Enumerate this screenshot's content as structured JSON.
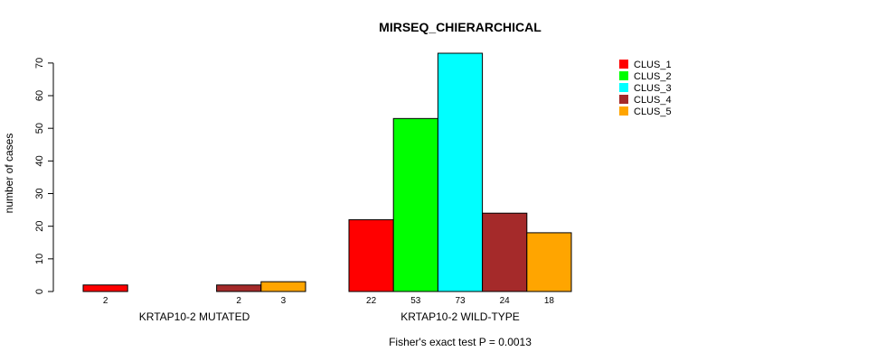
{
  "chart_data": {
    "type": "bar",
    "title": "MIRSEQ_CHIERARCHICAL",
    "ylabel": "number of cases",
    "xlabel": "",
    "ylim": [
      0,
      73
    ],
    "yticks": [
      0,
      10,
      20,
      30,
      40,
      50,
      60,
      70
    ],
    "groups": [
      "KRTAP10-2 MUTATED",
      "KRTAP10-2 WILD-TYPE"
    ],
    "series": [
      {
        "name": "CLUS_1",
        "color": "#ff0000",
        "values": [
          2,
          22
        ],
        "labels": [
          "2",
          "22"
        ]
      },
      {
        "name": "CLUS_2",
        "color": "#00ff00",
        "values": [
          0,
          53
        ],
        "labels": [
          "",
          "53"
        ]
      },
      {
        "name": "CLUS_3",
        "color": "#00ffff",
        "values": [
          0,
          73
        ],
        "labels": [
          "",
          "73"
        ]
      },
      {
        "name": "CLUS_4",
        "color": "#a52a2a",
        "values": [
          2,
          24
        ],
        "labels": [
          "2",
          "24"
        ]
      },
      {
        "name": "CLUS_5",
        "color": "#ffa500",
        "values": [
          3,
          18
        ],
        "labels": [
          "3",
          "18"
        ]
      }
    ],
    "legend_position": "top-right",
    "grid": false,
    "footnote": "Fisher's exact test P = 0.0013"
  }
}
